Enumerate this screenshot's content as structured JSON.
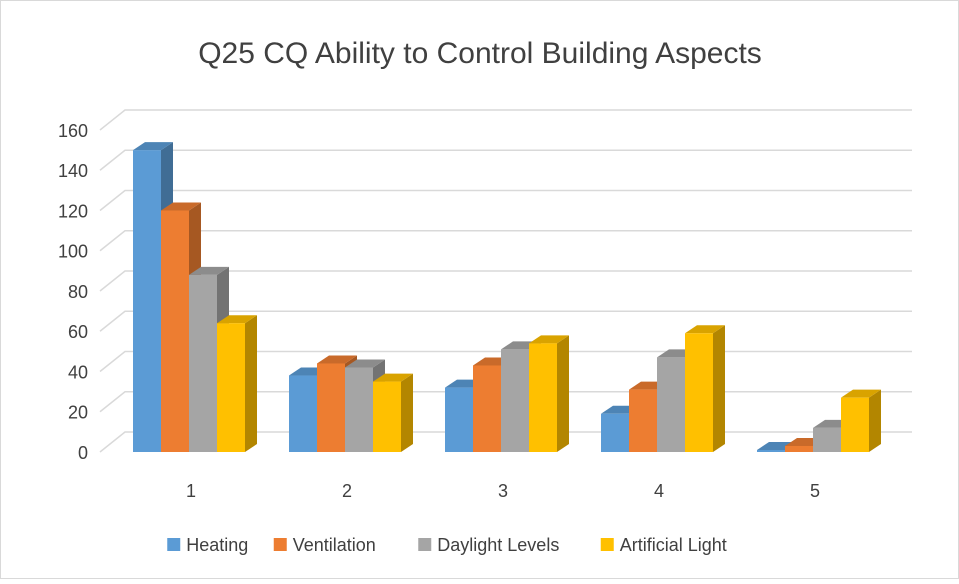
{
  "chart_data": {
    "type": "bar3d",
    "title": "Q25 CQ Ability to Control Building Aspects",
    "categories": [
      "1",
      "2",
      "3",
      "4",
      "5"
    ],
    "series": [
      {
        "name": "Heating",
        "color": "#5b9bd5",
        "values": [
          150,
          38,
          32,
          19,
          1
        ]
      },
      {
        "name": "Ventilation",
        "color": "#ed7d31",
        "values": [
          120,
          44,
          43,
          31,
          3
        ]
      },
      {
        "name": "Daylight Levels",
        "color": "#a5a5a5",
        "values": [
          88,
          42,
          51,
          47,
          12
        ]
      },
      {
        "name": "Artificial Light",
        "color": "#ffc000",
        "values": [
          64,
          35,
          54,
          59,
          27
        ]
      }
    ],
    "ylim": [
      0,
      160
    ],
    "yticks": [
      0,
      20,
      40,
      60,
      80,
      100,
      120,
      140,
      160
    ],
    "grid": true,
    "legend": "bottom"
  }
}
